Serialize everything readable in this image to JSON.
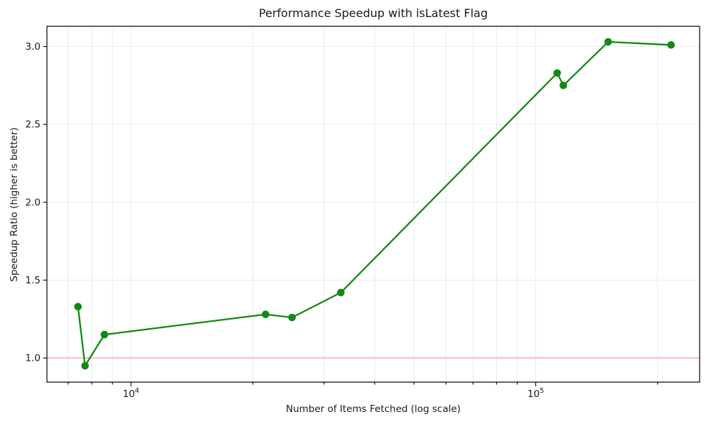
{
  "chart_data": {
    "type": "line",
    "title": "Performance Speedup with isLatest Flag",
    "xlabel": "Number of Items Fetched (log scale)",
    "ylabel": "Speedup Ratio (higher is better)",
    "x_scale": "log",
    "grid": true,
    "legend": "none",
    "x": [
      7400,
      7700,
      8600,
      21500,
      25000,
      33000,
      113000,
      117000,
      151000,
      216000
    ],
    "y": [
      1.33,
      0.95,
      1.15,
      1.28,
      1.26,
      1.42,
      2.83,
      2.75,
      3.03,
      3.01
    ],
    "xlim": [
      6200,
      254000
    ],
    "ylim": [
      0.845,
      3.13
    ],
    "y_ticks": [
      1.0,
      1.5,
      2.0,
      2.5,
      3.0
    ],
    "y_tick_labels": [
      "1.0",
      "1.5",
      "2.0",
      "2.5",
      "3.0"
    ],
    "x_major_ticks": [
      {
        "value": 10000,
        "base": "10",
        "exp": "4"
      },
      {
        "value": 100000,
        "base": "10",
        "exp": "5"
      }
    ],
    "baseline": {
      "value": 1.0,
      "color": "#ffb3b3"
    },
    "colors": {
      "series": "#128912",
      "baseline": "#ffb3b3"
    }
  }
}
